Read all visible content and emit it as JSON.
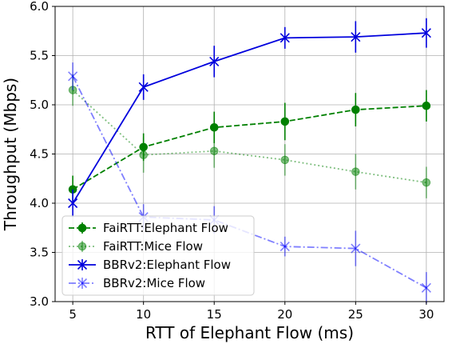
{
  "chart_data": {
    "type": "line",
    "xlabel": "RTT of Elephant Flow (ms)",
    "ylabel": "Throughput (Mbps)",
    "x": [
      5,
      10,
      15,
      20,
      25,
      30
    ],
    "xlim": [
      3.75,
      31.25
    ],
    "ylim": [
      3.0,
      6.0
    ],
    "xticks": [
      "5",
      "10",
      "15",
      "20",
      "25",
      "30"
    ],
    "yticks": [
      "3.0",
      "3.5",
      "4.0",
      "4.5",
      "5.0",
      "5.5",
      "6.0"
    ],
    "grid": true,
    "legend_position": "lower-left",
    "series": [
      {
        "name": "FaiRTT:Elephant Flow",
        "values": [
          4.14,
          4.57,
          4.77,
          4.83,
          4.95,
          4.99
        ],
        "errors": [
          0.14,
          0.14,
          0.16,
          0.19,
          0.17,
          0.16
        ],
        "color": "#008000",
        "linestyle": "dashed",
        "marker": "circle",
        "alpha": 1.0
      },
      {
        "name": "FaiRTT:Mice Flow",
        "values": [
          5.15,
          4.49,
          4.53,
          4.44,
          4.32,
          4.21
        ],
        "errors": [
          0.16,
          0.18,
          0.17,
          0.16,
          0.18,
          0.16
        ],
        "color": "#008000",
        "linestyle": "dotted",
        "marker": "circle",
        "alpha": 0.5
      },
      {
        "name": "BBRv2:Elephant Flow",
        "values": [
          4.0,
          5.18,
          5.44,
          5.68,
          5.69,
          5.73
        ],
        "errors": [
          0.14,
          0.13,
          0.16,
          0.11,
          0.16,
          0.15
        ],
        "color": "#0000dd",
        "linestyle": "solid",
        "marker": "x",
        "alpha": 1.0
      },
      {
        "name": "BBRv2:Mice Flow",
        "values": [
          5.29,
          3.86,
          3.83,
          3.56,
          3.54,
          3.14
        ],
        "errors": [
          0.14,
          0.13,
          0.14,
          0.1,
          0.18,
          0.16
        ],
        "color": "#0000ff",
        "linestyle": "dashdot",
        "marker": "x",
        "alpha": 0.5
      }
    ]
  }
}
